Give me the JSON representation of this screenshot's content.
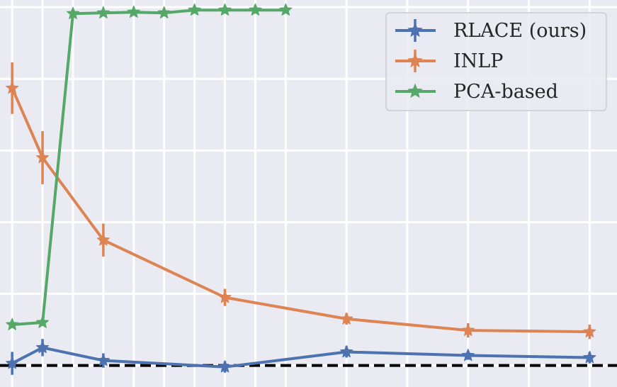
{
  "chart_data": {
    "type": "line",
    "title": "",
    "xlabel": "",
    "ylabel": "",
    "x": [
      1,
      2,
      3,
      4,
      5,
      6,
      7,
      8,
      9,
      10,
      12,
      14,
      16,
      18,
      20
    ],
    "xlim": [
      0.6,
      20.9
    ],
    "ylim": [
      -0.3,
      5.1
    ],
    "grid": true,
    "legend": "upper right",
    "baseline": {
      "y": 0,
      "style": "dashed",
      "color": "#000000"
    },
    "series": [
      {
        "name": "RLACE (ours)",
        "color": "#4c72b0",
        "x": [
          1,
          2,
          4,
          8,
          12,
          16,
          20
        ],
        "y": [
          0.03,
          0.25,
          0.07,
          -0.02,
          0.19,
          0.14,
          0.11
        ],
        "err": [
          0.16,
          0.12,
          0.1,
          0.08,
          0.08,
          0.06,
          0.08
        ]
      },
      {
        "name": "INLP",
        "color": "#dd8452",
        "x": [
          1,
          2,
          4,
          8,
          12,
          16,
          20
        ],
        "y": [
          3.87,
          2.9,
          1.75,
          0.95,
          0.65,
          0.49,
          0.47
        ],
        "err": [
          0.36,
          0.37,
          0.23,
          0.12,
          0.08,
          0.1,
          0.1
        ]
      },
      {
        "name": "PCA-based",
        "color": "#55a868",
        "x": [
          1,
          2,
          3,
          4,
          5,
          6,
          7,
          8,
          9,
          10
        ],
        "y": [
          0.57,
          0.6,
          4.91,
          4.92,
          4.93,
          4.92,
          4.96,
          4.96,
          4.96,
          4.96
        ],
        "err": [
          0,
          0,
          0,
          0,
          0,
          0,
          0,
          0,
          0,
          0
        ]
      }
    ]
  }
}
